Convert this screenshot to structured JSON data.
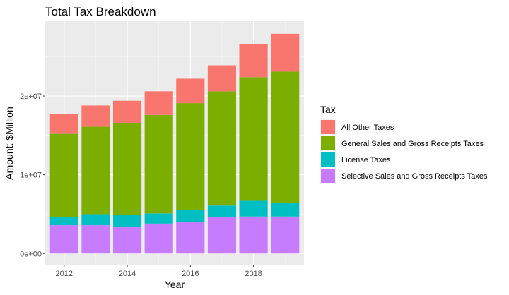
{
  "chart_data": {
    "type": "bar",
    "stacked": true,
    "title": "Total Tax Breakdown",
    "xlabel": "Year",
    "ylabel": "Amount: $Million",
    "categories": [
      2012,
      2013,
      2014,
      2015,
      2016,
      2017,
      2018,
      2019
    ],
    "x_ticks": [
      2012,
      2014,
      2016,
      2018
    ],
    "y_ticks": [
      {
        "value": 0,
        "label": "0e+00"
      },
      {
        "value": 10000000,
        "label": "1e+07"
      },
      {
        "value": 20000000,
        "label": "2e+07"
      }
    ],
    "ylim": [
      -1500000,
      29500000
    ],
    "xlim": [
      2011.4,
      2019.6
    ],
    "grid": true,
    "legend_position": "right",
    "legend_title": "Tax",
    "series": [
      {
        "name": "Selective Sales and Gross Receipts Taxes",
        "color": "#C77CFF",
        "values": [
          3600000,
          3600000,
          3400000,
          3800000,
          4000000,
          4600000,
          4700000,
          4700000
        ]
      },
      {
        "name": "License Taxes",
        "color": "#00BFC4",
        "values": [
          1000000,
          1400000,
          1500000,
          1300000,
          1500000,
          1500000,
          2000000,
          1700000
        ]
      },
      {
        "name": "General Sales and Gross Receipts Taxes",
        "color": "#7CAE00",
        "values": [
          10600000,
          11100000,
          11700000,
          12500000,
          13600000,
          14500000,
          15700000,
          16700000
        ]
      },
      {
        "name": "All Other Taxes",
        "color": "#F8766D",
        "values": [
          2500000,
          2700000,
          2800000,
          3000000,
          3100000,
          3300000,
          4200000,
          4800000
        ]
      }
    ],
    "legend_order": [
      "All Other Taxes",
      "General Sales and Gross Receipts Taxes",
      "License Taxes",
      "Selective Sales and Gross Receipts Taxes"
    ]
  }
}
